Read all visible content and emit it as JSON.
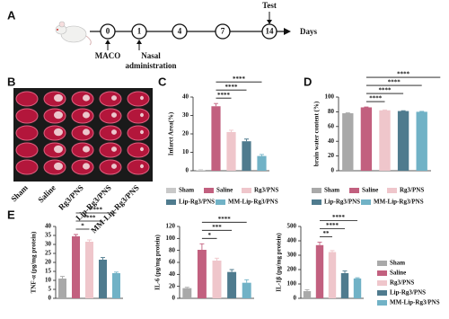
{
  "panel_labels": [
    "A",
    "B",
    "C",
    "D",
    "E"
  ],
  "timeline": {
    "days": [
      "0",
      "1",
      "4",
      "7",
      "14"
    ],
    "axis_label": "Days",
    "above": "Test",
    "below": "MACO",
    "nasal": [
      "Nasal",
      "administration"
    ]
  },
  "photo": {
    "labels": [
      "Sham",
      "Saline",
      "Rg3/PNS",
      "Lip-Rg3/PNS",
      "MM-Lip-Rg3/PNS"
    ]
  },
  "chart_data": [
    {
      "type": "bar",
      "ylabel": "Infarct Area(%)",
      "categories": [
        "Sham",
        "Saline",
        "Rg3/PNS",
        "Lip-Rg3/PNS",
        "MM-Lip-Rg3/PNS"
      ],
      "colors": [
        "#c9c9c9",
        "#c2607f",
        "#efc6cb",
        "#4f7b8e",
        "#71b2c6"
      ],
      "values": [
        0.3,
        35,
        21,
        16,
        8
      ],
      "errors": [
        0.3,
        1.5,
        1,
        1.2,
        0.8
      ],
      "ylim": [
        0,
        40
      ],
      "yticks": [
        0,
        10,
        20,
        30,
        40
      ],
      "annotations": [
        "****",
        "****",
        "****"
      ],
      "legend": "bottom"
    },
    {
      "type": "bar",
      "ylabel": "brain water content (%)",
      "categories": [
        "Sham",
        "Saline",
        "Rg3/PNS",
        "Lip-Rg3/PNS",
        "MM-Lip-Rg3/PNS"
      ],
      "colors": [
        "#a9a9a9",
        "#c2607f",
        "#efc6cb",
        "#4f7b8e",
        "#71b2c6"
      ],
      "values": [
        78,
        86,
        82,
        81,
        80
      ],
      "errors": [
        0.5,
        0.5,
        0.5,
        0.5,
        0.5
      ],
      "ylim": [
        0,
        100
      ],
      "yticks": [
        0,
        20,
        40,
        60,
        80,
        100
      ],
      "annotations": [
        "****",
        "****",
        "****",
        "****"
      ],
      "legend": "bottom"
    },
    {
      "type": "bar",
      "ylabel": "TNF-α (pg/mg protein)",
      "categories": [
        "Sham",
        "Saline",
        "Rg3/PNS",
        "Lip-Rg3/PNS",
        "MM-Lip-Rg3/PNS"
      ],
      "colors": [
        "#a9a9a9",
        "#c2607f",
        "#efc6cb",
        "#4f7b8e",
        "#71b2c6"
      ],
      "values": [
        11,
        34.5,
        31.5,
        21.5,
        14
      ],
      "errors": [
        1.2,
        1,
        1,
        1.2,
        0.6
      ],
      "ylim": [
        0,
        40
      ],
      "yticks": [
        0,
        5,
        10,
        15,
        20,
        25,
        30,
        35,
        40
      ],
      "annotations": [
        "*",
        "****",
        "****"
      ]
    },
    {
      "type": "bar",
      "ylabel": "IL-6 (pg/mg protein)",
      "categories": [
        "Sham",
        "Saline",
        "Rg3/PNS",
        "Lip-Rg3/PNS",
        "MM-Lip-Rg3/PNS"
      ],
      "colors": [
        "#a9a9a9",
        "#c2607f",
        "#efc6cb",
        "#4f7b8e",
        "#71b2c6"
      ],
      "values": [
        17,
        81,
        63,
        44,
        26
      ],
      "errors": [
        1.5,
        10,
        4,
        4,
        5
      ],
      "ylim": [
        0,
        120
      ],
      "yticks": [
        0,
        20,
        40,
        60,
        80,
        100,
        120
      ],
      "annotations": [
        "*",
        "***",
        "****"
      ]
    },
    {
      "type": "bar",
      "ylabel": "IL-1β (pg/mg protein)",
      "categories": [
        "Sham",
        "Saline",
        "Rg3/PNS",
        "Lip-Rg3/PNS",
        "MM-Lip-Rg3/PNS"
      ],
      "colors": [
        "#a9a9a9",
        "#c2607f",
        "#efc6cb",
        "#4f7b8e",
        "#71b2c6"
      ],
      "values": [
        50,
        370,
        322,
        175,
        138
      ],
      "errors": [
        10,
        20,
        10,
        15,
        5
      ],
      "ylim": [
        0,
        500
      ],
      "yticks": [
        0,
        100,
        200,
        300,
        400,
        500
      ],
      "annotations": [
        "**",
        "****",
        "****"
      ],
      "legend": "right"
    }
  ]
}
